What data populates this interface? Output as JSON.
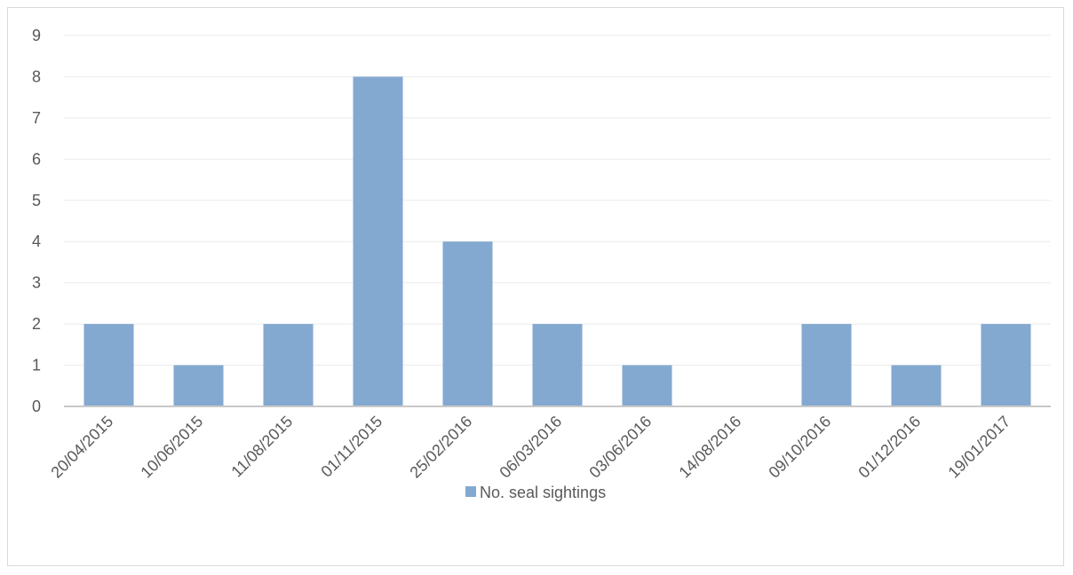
{
  "chart_data": {
    "type": "bar",
    "categories": [
      "20/04/2015",
      "10/06/2015",
      "11/08/2015",
      "01/11/2015",
      "25/02/2016",
      "06/03/2016",
      "03/06/2016",
      "14/08/2016",
      "09/10/2016",
      "01/12/2016",
      "19/01/2017"
    ],
    "series": [
      {
        "name": "No. seal sightings",
        "values": [
          2,
          1,
          2,
          8,
          4,
          2,
          1,
          0,
          2,
          1,
          2
        ],
        "color": "#84a9d1"
      }
    ],
    "title": "",
    "xlabel": "",
    "ylabel": "",
    "ylim": [
      0,
      9
    ],
    "yticks": [
      0,
      1,
      2,
      3,
      4,
      5,
      6,
      7,
      8,
      9
    ],
    "grid": true,
    "legend_position": "bottom"
  },
  "colors": {
    "bar": "#84a9d1",
    "gridline": "#ebebeb",
    "axis": "#c8c8c8",
    "text": "#595959",
    "border": "#d9d9d9"
  }
}
